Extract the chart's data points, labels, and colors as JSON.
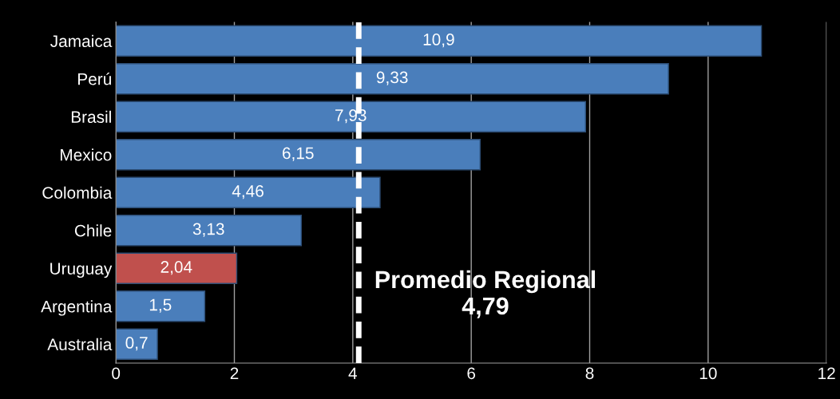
{
  "chart_data": {
    "type": "bar",
    "orientation": "horizontal",
    "categories": [
      "Jamaica",
      "Perú",
      "Brasil",
      "Mexico",
      "Colombia",
      "Chile",
      "Uruguay",
      "Argentina",
      "Australia"
    ],
    "values": [
      10.9,
      9.33,
      7.93,
      6.15,
      4.46,
      3.13,
      2.04,
      1.5,
      0.7
    ],
    "colors": [
      "#4a7ebb",
      "#4a7ebb",
      "#4a7ebb",
      "#4a7ebb",
      "#4a7ebb",
      "#4a7ebb",
      "#c0504d",
      "#4a7ebb",
      "#4a7ebb"
    ],
    "value_labels": [
      "10,9",
      "9,33",
      "7,93",
      "6,15",
      "4,46",
      "3,13",
      "2,04",
      "1,5",
      "0,7"
    ],
    "xlim": [
      0,
      12
    ],
    "xticks": [
      0,
      2,
      4,
      6,
      8,
      10,
      12
    ],
    "grid": "x",
    "ref_lines": [
      {
        "axis": "x",
        "value": 4.1,
        "label": "Promedio Regional\n4,79",
        "color": "#ffffff",
        "line_style": "dashed"
      }
    ]
  }
}
